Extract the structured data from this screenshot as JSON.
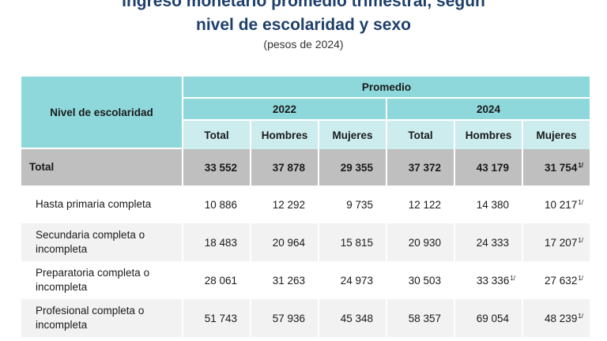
{
  "header": {
    "title_line1": "Ingreso monetario promedio trimestral, según",
    "title_line2": "nivel de escolaridad y sexo",
    "subtitle": "(pesos de 2024)"
  },
  "table": {
    "row_header": "Nivel de escolaridad",
    "group_header": "Promedio",
    "years": [
      "2022",
      "2024"
    ],
    "columns": [
      "Total",
      "Hombres",
      "Mujeres",
      "Total",
      "Hombres",
      "Mujeres"
    ],
    "footnote_mark": "1/",
    "rows": [
      {
        "label": "Total",
        "values": [
          "33 552",
          "37 878",
          "29 355",
          "37 372",
          "43 179",
          "31 754"
        ],
        "marks": [
          false,
          false,
          false,
          false,
          false,
          true
        ]
      },
      {
        "label": "Hasta primaria completa",
        "values": [
          "10 886",
          "12 292",
          "9 735",
          "12 122",
          "14 380",
          "10 217"
        ],
        "marks": [
          false,
          false,
          false,
          false,
          false,
          true
        ]
      },
      {
        "label": "Secundaria completa o incompleta",
        "values": [
          "18 483",
          "20 964",
          "15 815",
          "20 930",
          "24 333",
          "17 207"
        ],
        "marks": [
          false,
          false,
          false,
          false,
          false,
          true
        ]
      },
      {
        "label": "Preparatoria completa o incompleta",
        "values": [
          "28 061",
          "31 263",
          "24 973",
          "30 503",
          "33 336",
          "27 632"
        ],
        "marks": [
          false,
          false,
          false,
          false,
          true,
          true
        ]
      },
      {
        "label": "Profesional completa o incompleta",
        "values": [
          "51 743",
          "57 936",
          "45 348",
          "58 357",
          "69 054",
          "48 239"
        ],
        "marks": [
          false,
          false,
          false,
          false,
          false,
          true
        ]
      }
    ]
  },
  "colors": {
    "header": "#8ed8dc",
    "subheader": "#ccecee",
    "total_row": "#bfbfbf",
    "title": "#1e3f6b"
  }
}
